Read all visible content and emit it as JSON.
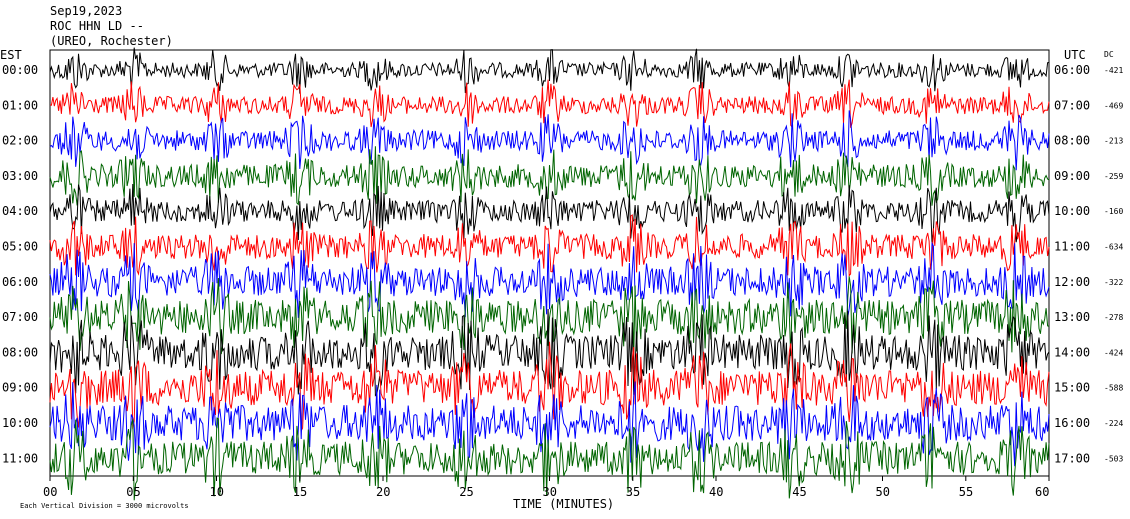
{
  "header": {
    "date": "Sep19,2023",
    "channel": "ROC HHN LD --",
    "station": "(UREO, Rochester)"
  },
  "axis": {
    "left_label": "EST",
    "right_label": "UTC",
    "dc_label": "DC",
    "x_title": "TIME (MINUTES)",
    "footnote": "Each Vertical Division = 3000 microvolts"
  },
  "chart_data": {
    "type": "line",
    "title": "",
    "xlabel": "TIME (MINUTES)",
    "xlim": [
      0,
      60
    ],
    "x_ticks": [
      "00",
      "05",
      "10",
      "15",
      "20",
      "25",
      "30",
      "35",
      "40",
      "45",
      "50",
      "55",
      "60"
    ],
    "trace_colors": [
      "#000000",
      "#ff0000",
      "#0000ff",
      "#006400"
    ],
    "rows": [
      {
        "est": "00:00",
        "utc": "06:00",
        "dc": "-421",
        "color": "#000000",
        "noise": 0.25
      },
      {
        "est": "01:00",
        "utc": "07:00",
        "dc": "-469",
        "color": "#ff0000",
        "noise": 0.35
      },
      {
        "est": "02:00",
        "utc": "08:00",
        "dc": "-213",
        "color": "#0000ff",
        "noise": 0.45
      },
      {
        "est": "03:00",
        "utc": "09:00",
        "dc": "-259",
        "color": "#006400",
        "noise": 0.55
      },
      {
        "est": "04:00",
        "utc": "10:00",
        "dc": "-160",
        "color": "#000000",
        "noise": 0.5
      },
      {
        "est": "05:00",
        "utc": "11:00",
        "dc": "-634",
        "color": "#ff0000",
        "noise": 0.6
      },
      {
        "est": "06:00",
        "utc": "12:00",
        "dc": "-322",
        "color": "#0000ff",
        "noise": 0.8
      },
      {
        "est": "07:00",
        "utc": "13:00",
        "dc": "-278",
        "color": "#006400",
        "noise": 0.95
      },
      {
        "est": "08:00",
        "utc": "14:00",
        "dc": "-424",
        "color": "#000000",
        "noise": 1.0
      },
      {
        "est": "09:00",
        "utc": "15:00",
        "dc": "-588",
        "color": "#ff0000",
        "noise": 1.0
      },
      {
        "est": "10:00",
        "utc": "16:00",
        "dc": "-224",
        "color": "#0000ff",
        "noise": 1.0
      },
      {
        "est": "11:00",
        "utc": "17:00",
        "dc": "-503",
        "color": "#006400",
        "noise": 0.9
      }
    ]
  }
}
